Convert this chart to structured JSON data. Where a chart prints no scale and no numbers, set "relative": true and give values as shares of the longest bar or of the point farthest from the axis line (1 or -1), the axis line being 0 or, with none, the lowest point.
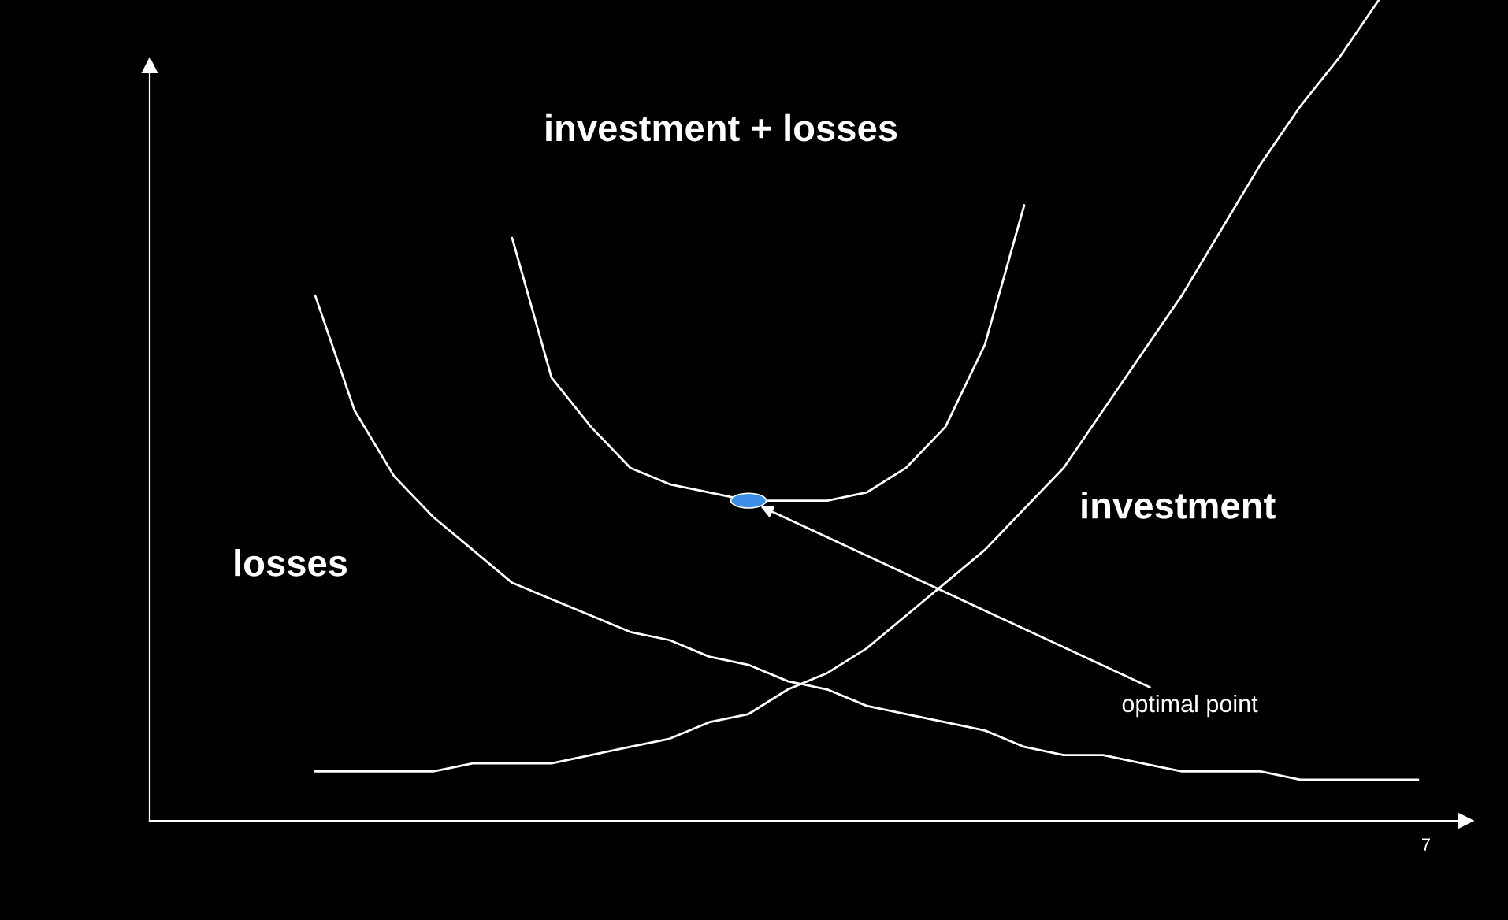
{
  "chart_data": {
    "type": "line",
    "relative": true,
    "legend": false,
    "marker": "none",
    "line_style": "solid",
    "categories": [
      null,
      null,
      null,
      null,
      null,
      null,
      null,
      null,
      null,
      null,
      null,
      null,
      null,
      null,
      null,
      null,
      null,
      null,
      null,
      null,
      null,
      null,
      null,
      null,
      null,
      null,
      null,
      null,
      null
    ],
    "series": [
      {
        "name": "losses",
        "color": "#ffffff",
        "values": [
          0.64,
          0.5,
          0.42,
          0.37,
          0.33,
          0.29,
          0.27,
          0.25,
          0.23,
          0.22,
          0.2,
          0.19,
          0.17,
          0.16,
          0.14,
          0.13,
          0.12,
          0.11,
          0.09,
          0.08,
          0.08,
          0.07,
          0.06,
          0.06,
          0.06,
          0.05,
          0.05,
          0.05,
          0.05
        ]
      },
      {
        "name": "investment",
        "color": "#ffffff",
        "values": [
          0.06,
          0.06,
          0.06,
          0.06,
          0.07,
          0.07,
          0.07,
          0.08,
          0.09,
          0.1,
          0.12,
          0.13,
          0.16,
          0.18,
          0.21,
          0.25,
          0.29,
          0.33,
          0.38,
          0.43,
          0.5,
          0.57,
          0.64,
          0.72,
          0.8,
          0.87,
          0.93,
          1.0,
          null
        ]
      },
      {
        "name": "investment + losses",
        "color": "#ffffff",
        "values": [
          null,
          null,
          null,
          null,
          null,
          0.71,
          0.54,
          0.48,
          0.43,
          0.41,
          0.4,
          0.39,
          0.39,
          0.39,
          0.4,
          0.43,
          0.48,
          0.58,
          0.75,
          null,
          null,
          null,
          null,
          null,
          null,
          null,
          null,
          null,
          null
        ]
      }
    ],
    "annotations": [
      "optimal point",
      "7"
    ]
  }
}
